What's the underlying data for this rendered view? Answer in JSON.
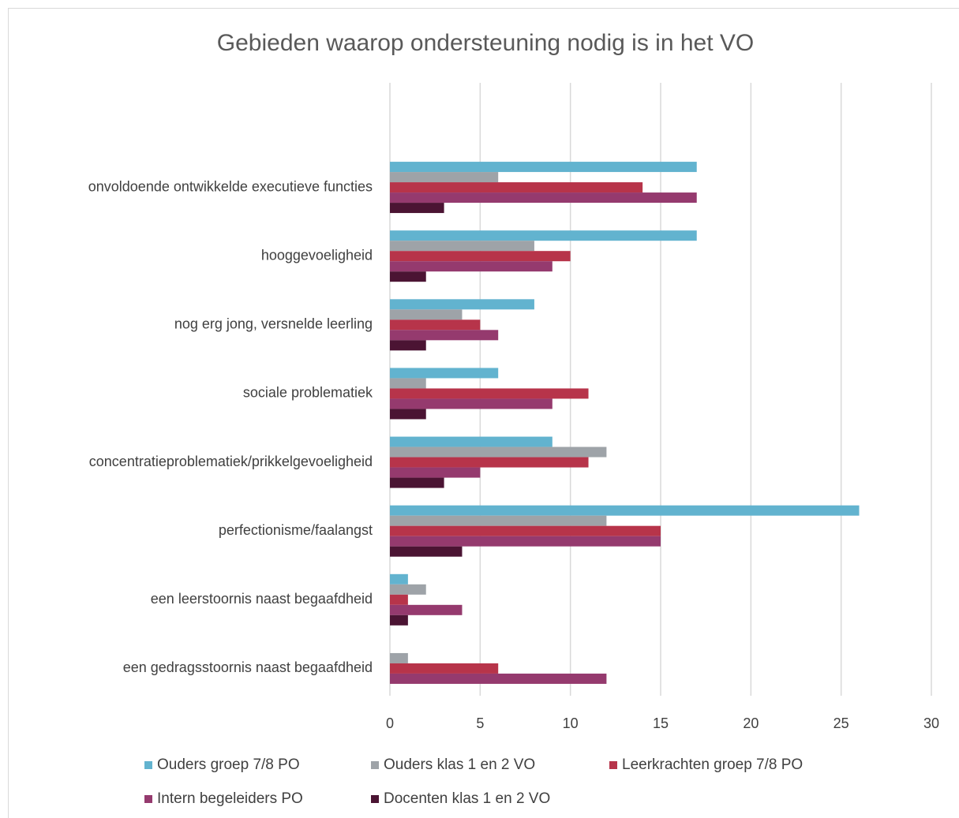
{
  "chart_data": {
    "type": "bar",
    "orientation": "horizontal",
    "title": "Gebieden waarop ondersteuning nodig is in het VO",
    "categories": [
      "onvoldoende ontwikkelde executieve functies",
      "hooggevoeligheid",
      "nog erg jong, versnelde leerling",
      "sociale problematiek",
      "concentratieproblematiek/prikkelgevoeligheid",
      "perfectionisme/faalangst",
      "een leerstoornis naast begaafdheid",
      "een gedragsstoornis naast begaafdheid"
    ],
    "series": [
      {
        "name": "Ouders groep 7/8 PO",
        "color": "#62b3cf",
        "values": [
          17,
          17,
          8,
          6,
          9,
          26,
          1,
          0
        ]
      },
      {
        "name": "Ouders klas 1 en 2 VO",
        "color": "#9ea3a8",
        "values": [
          6,
          8,
          4,
          2,
          12,
          12,
          2,
          1
        ]
      },
      {
        "name": "Leerkrachten groep 7/8 PO",
        "color": "#b7344a",
        "values": [
          14,
          10,
          5,
          11,
          11,
          15,
          1,
          6
        ]
      },
      {
        "name": "Intern begeleiders PO",
        "color": "#953a6e",
        "values": [
          17,
          9,
          6,
          9,
          5,
          15,
          4,
          12
        ]
      },
      {
        "name": "Docenten klas 1 en 2 VO",
        "color": "#4b1433",
        "values": [
          3,
          2,
          2,
          2,
          3,
          4,
          1,
          0
        ]
      }
    ],
    "xlim": [
      0,
      30
    ],
    "xticks": [
      0,
      5,
      10,
      15,
      20,
      25,
      30
    ],
    "grid": true,
    "legend": "bottom"
  }
}
